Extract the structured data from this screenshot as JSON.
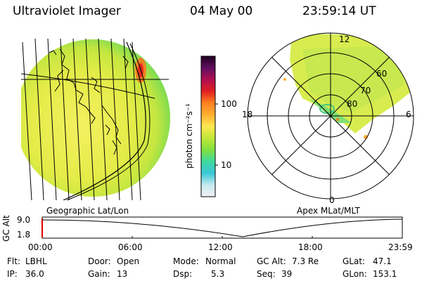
{
  "header": {
    "instrument": "Ultraviolet Imager",
    "date": "04 May 00",
    "time": "23:59:14 UT"
  },
  "colorbar": {
    "unit_label": "photon cm⁻²s⁻¹",
    "ticks": [
      "100",
      "10"
    ],
    "scale": "log",
    "colors": [
      "#f2f2f2",
      "#c8eaf0",
      "#38c8d8",
      "#40d8a0",
      "#80e040",
      "#c0e838",
      "#ffe850",
      "#ffb030",
      "#ff8020",
      "#e02020",
      "#b01050",
      "#601060",
      "#200020"
    ]
  },
  "panels": {
    "left_caption": "Geographic Lat/Lon",
    "right_caption": "Apex MLat/MLT"
  },
  "polar": {
    "top_label": "12",
    "left_label": "18",
    "right_label": "6",
    "bottom_label": "0",
    "ring_labels": [
      "60",
      "70",
      "80"
    ]
  },
  "altitude": {
    "axis_label": "GC Alt",
    "ticks": [
      "9.0",
      "1.8"
    ],
    "time_ticks": [
      "00:00",
      "06:00",
      "12:00",
      "18:00",
      "23:59"
    ]
  },
  "info": {
    "flt_label": "Flt:",
    "flt_value": "LBHL",
    "ip_label": "IP:",
    "ip_value": "36.0",
    "door_label": "Door:",
    "door_value": "Open",
    "gain_label": "Gain:",
    "gain_value": "13",
    "mode_label": "Mode:",
    "mode_value": "Normal",
    "dsp_label": "Dsp:",
    "dsp_value": "5.3",
    "gcalt_label": "GC Alt:",
    "gcalt_value": "7.3 Re",
    "seq_label": "Seq:",
    "seq_value": "39",
    "glat_label": "GLat:",
    "glat_value": "47.1",
    "glon_label": "GLon:",
    "glon_value": "153.1"
  }
}
